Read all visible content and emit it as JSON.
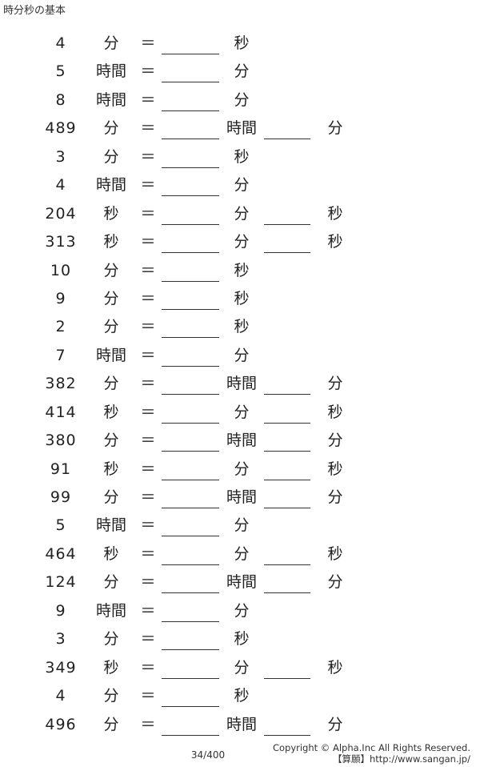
{
  "title": "時分秒の基本",
  "problems": [
    {
      "value": "4",
      "unit": "分",
      "to": [
        "秒"
      ]
    },
    {
      "value": "5",
      "unit": "時間",
      "to": [
        "分"
      ]
    },
    {
      "value": "8",
      "unit": "時間",
      "to": [
        "分"
      ]
    },
    {
      "value": "489",
      "unit": "分",
      "to": [
        "時間",
        "分"
      ]
    },
    {
      "value": "3",
      "unit": "分",
      "to": [
        "秒"
      ]
    },
    {
      "value": "4",
      "unit": "時間",
      "to": [
        "分"
      ]
    },
    {
      "value": "204",
      "unit": "秒",
      "to": [
        "分",
        "秒"
      ]
    },
    {
      "value": "313",
      "unit": "秒",
      "to": [
        "分",
        "秒"
      ]
    },
    {
      "value": "10",
      "unit": "分",
      "to": [
        "秒"
      ]
    },
    {
      "value": "9",
      "unit": "分",
      "to": [
        "秒"
      ]
    },
    {
      "value": "2",
      "unit": "分",
      "to": [
        "秒"
      ]
    },
    {
      "value": "7",
      "unit": "時間",
      "to": [
        "分"
      ]
    },
    {
      "value": "382",
      "unit": "分",
      "to": [
        "時間",
        "分"
      ]
    },
    {
      "value": "414",
      "unit": "秒",
      "to": [
        "分",
        "秒"
      ]
    },
    {
      "value": "380",
      "unit": "分",
      "to": [
        "時間",
        "分"
      ]
    },
    {
      "value": "91",
      "unit": "秒",
      "to": [
        "分",
        "秒"
      ]
    },
    {
      "value": "99",
      "unit": "分",
      "to": [
        "時間",
        "分"
      ]
    },
    {
      "value": "5",
      "unit": "時間",
      "to": [
        "分"
      ]
    },
    {
      "value": "464",
      "unit": "秒",
      "to": [
        "分",
        "秒"
      ]
    },
    {
      "value": "124",
      "unit": "分",
      "to": [
        "時間",
        "分"
      ]
    },
    {
      "value": "9",
      "unit": "時間",
      "to": [
        "分"
      ]
    },
    {
      "value": "3",
      "unit": "分",
      "to": [
        "秒"
      ]
    },
    {
      "value": "349",
      "unit": "秒",
      "to": [
        "分",
        "秒"
      ]
    },
    {
      "value": "4",
      "unit": "分",
      "to": [
        "秒"
      ]
    },
    {
      "value": "496",
      "unit": "分",
      "to": [
        "時間",
        "分"
      ]
    }
  ],
  "equals": "＝",
  "page_number": "34/400",
  "copyright": "Copyright © Alpha.Inc All Rights Reserved.",
  "site": "【算願】http://www.sangan.jp/"
}
